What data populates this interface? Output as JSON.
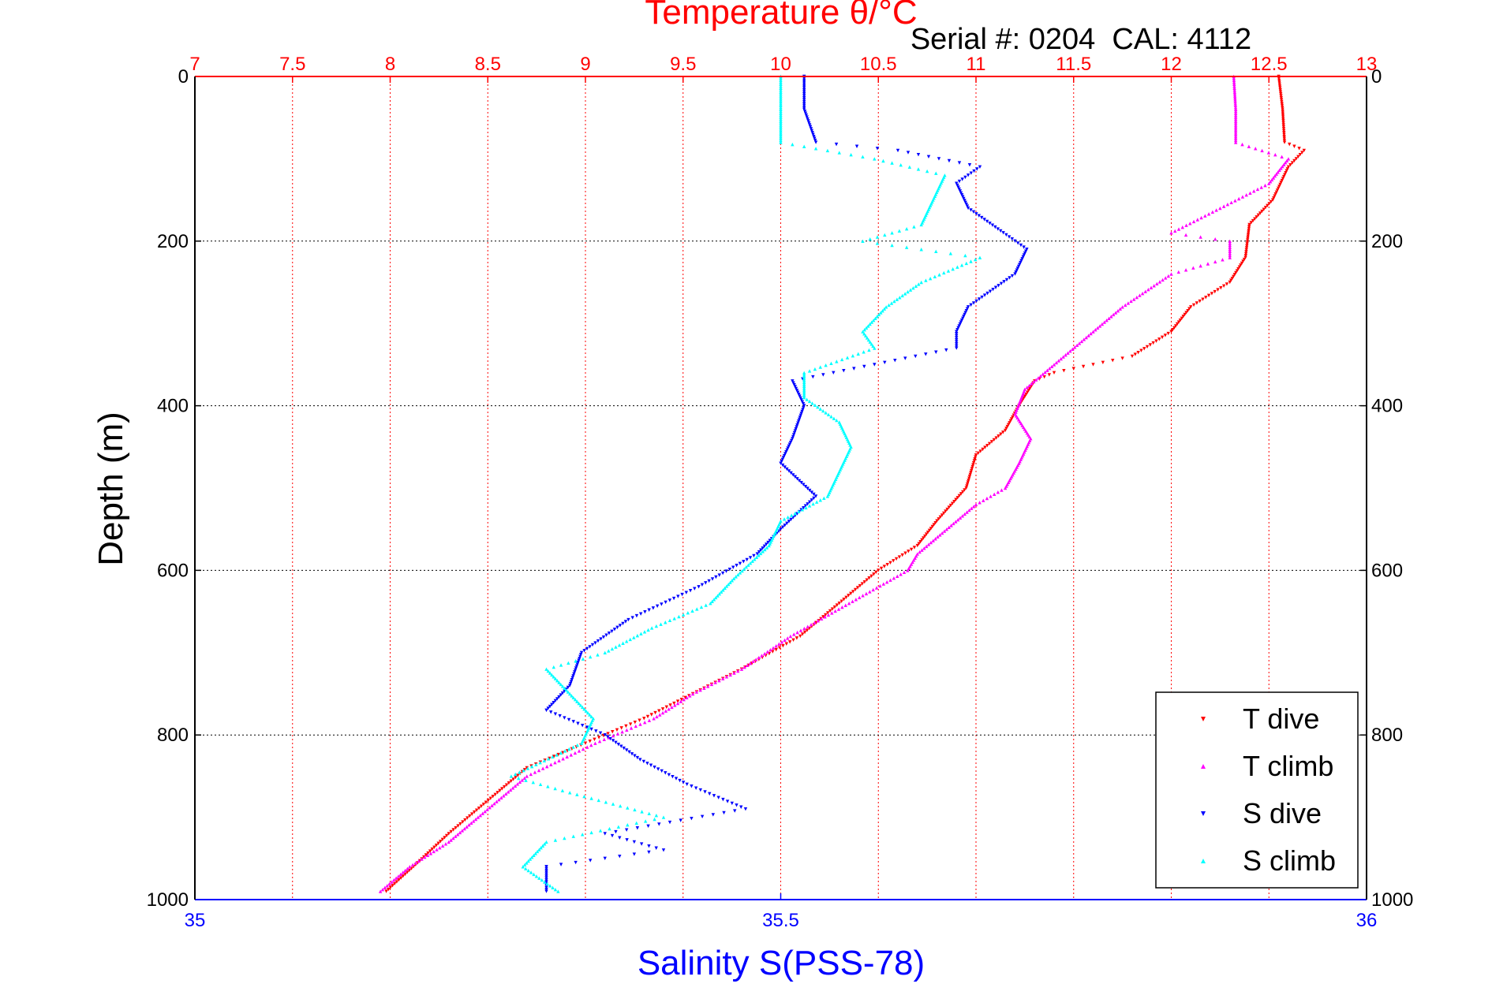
{
  "chart_data": {
    "type": "scatter",
    "title": "Temperature θ/°C",
    "subtitle": "Serial #: 0204  CAL: 4112",
    "xlabel": "Salinity S(PSS-78)",
    "ylabel": "Depth (m)",
    "x_top": {
      "label": "Temperature θ/°C",
      "range": [
        7,
        13
      ],
      "ticks": [
        "7",
        "7.5",
        "8",
        "8.5",
        "9",
        "9.5",
        "10",
        "10.5",
        "11",
        "11.5",
        "12",
        "12.5",
        "13"
      ],
      "color": "#ff0000"
    },
    "x_bottom": {
      "label": "Salinity S(PSS-78)",
      "range": [
        35,
        36
      ],
      "ticks": [
        "35",
        "35.5",
        "36"
      ],
      "color": "#0000ff"
    },
    "y": {
      "range": [
        0,
        1000
      ],
      "reversed": true,
      "ticks": [
        "0",
        "200",
        "400",
        "600",
        "800",
        "1000"
      ]
    },
    "grid": true,
    "legend_position": "bottom-right",
    "series": [
      {
        "name": "T dive",
        "axis": "temperature",
        "color": "#ff0000",
        "marker": "triangle-down",
        "points": [
          [
            12.55,
            0
          ],
          [
            12.57,
            40
          ],
          [
            12.58,
            80
          ],
          [
            12.68,
            90
          ],
          [
            12.6,
            110
          ],
          [
            12.52,
            150
          ],
          [
            12.4,
            180
          ],
          [
            12.38,
            220
          ],
          [
            12.3,
            250
          ],
          [
            12.1,
            280
          ],
          [
            12.0,
            310
          ],
          [
            11.8,
            340
          ],
          [
            11.4,
            360
          ],
          [
            11.3,
            370
          ],
          [
            11.22,
            400
          ],
          [
            11.15,
            430
          ],
          [
            11.0,
            460
          ],
          [
            10.95,
            500
          ],
          [
            10.8,
            540
          ],
          [
            10.7,
            570
          ],
          [
            10.5,
            600
          ],
          [
            10.3,
            640
          ],
          [
            10.1,
            680
          ],
          [
            9.8,
            720
          ],
          [
            9.55,
            750
          ],
          [
            9.3,
            780
          ],
          [
            9.0,
            810
          ],
          [
            8.7,
            840
          ],
          [
            8.55,
            870
          ],
          [
            8.3,
            920
          ],
          [
            8.12,
            960
          ],
          [
            7.98,
            990
          ]
        ]
      },
      {
        "name": "T climb",
        "axis": "temperature",
        "color": "#ff00ff",
        "marker": "triangle-up",
        "points": [
          [
            12.32,
            0
          ],
          [
            12.33,
            40
          ],
          [
            12.33,
            80
          ],
          [
            12.6,
            100
          ],
          [
            12.5,
            130
          ],
          [
            12.25,
            160
          ],
          [
            12.0,
            190
          ],
          [
            12.3,
            200
          ],
          [
            12.3,
            220
          ],
          [
            12.0,
            240
          ],
          [
            11.75,
            280
          ],
          [
            11.6,
            310
          ],
          [
            11.4,
            350
          ],
          [
            11.25,
            380
          ],
          [
            11.2,
            410
          ],
          [
            11.28,
            440
          ],
          [
            11.22,
            470
          ],
          [
            11.15,
            500
          ],
          [
            11.0,
            520
          ],
          [
            10.85,
            550
          ],
          [
            10.7,
            580
          ],
          [
            10.65,
            600
          ],
          [
            10.35,
            640
          ],
          [
            10.05,
            680
          ],
          [
            9.8,
            720
          ],
          [
            9.55,
            750
          ],
          [
            9.35,
            780
          ],
          [
            9.05,
            810
          ],
          [
            8.7,
            850
          ],
          [
            8.45,
            900
          ],
          [
            8.3,
            930
          ],
          [
            8.1,
            960
          ],
          [
            7.95,
            990
          ]
        ]
      },
      {
        "name": "S dive",
        "axis": "salinity",
        "color": "#0000ff",
        "marker": "triangle-down",
        "points": [
          [
            35.52,
            0
          ],
          [
            35.52,
            40
          ],
          [
            35.53,
            80
          ],
          [
            35.6,
            90
          ],
          [
            35.67,
            110
          ],
          [
            35.65,
            130
          ],
          [
            35.66,
            160
          ],
          [
            35.69,
            190
          ],
          [
            35.71,
            210
          ],
          [
            35.7,
            240
          ],
          [
            35.66,
            280
          ],
          [
            35.65,
            310
          ],
          [
            35.65,
            330
          ],
          [
            35.58,
            350
          ],
          [
            35.51,
            370
          ],
          [
            35.52,
            400
          ],
          [
            35.51,
            440
          ],
          [
            35.5,
            470
          ],
          [
            35.53,
            510
          ],
          [
            35.5,
            550
          ],
          [
            35.48,
            580
          ],
          [
            35.43,
            620
          ],
          [
            35.37,
            660
          ],
          [
            35.33,
            700
          ],
          [
            35.32,
            740
          ],
          [
            35.3,
            770
          ],
          [
            35.35,
            800
          ],
          [
            35.38,
            830
          ],
          [
            35.42,
            860
          ],
          [
            35.47,
            890
          ],
          [
            35.35,
            920
          ],
          [
            35.4,
            940
          ],
          [
            35.3,
            960
          ],
          [
            35.3,
            990
          ]
        ]
      },
      {
        "name": "S climb",
        "axis": "salinity",
        "color": "#00ffff",
        "marker": "triangle-up",
        "points": [
          [
            35.5,
            0
          ],
          [
            35.5,
            40
          ],
          [
            35.5,
            80
          ],
          [
            35.58,
            100
          ],
          [
            35.64,
            120
          ],
          [
            35.63,
            150
          ],
          [
            35.62,
            180
          ],
          [
            35.57,
            200
          ],
          [
            35.67,
            220
          ],
          [
            35.62,
            250
          ],
          [
            35.59,
            280
          ],
          [
            35.57,
            310
          ],
          [
            35.58,
            330
          ],
          [
            35.52,
            360
          ],
          [
            35.52,
            390
          ],
          [
            35.55,
            420
          ],
          [
            35.56,
            450
          ],
          [
            35.55,
            480
          ],
          [
            35.54,
            510
          ],
          [
            35.5,
            540
          ],
          [
            35.49,
            570
          ],
          [
            35.46,
            610
          ],
          [
            35.44,
            640
          ],
          [
            35.39,
            670
          ],
          [
            35.35,
            700
          ],
          [
            35.3,
            720
          ],
          [
            35.32,
            750
          ],
          [
            35.34,
            780
          ],
          [
            35.33,
            810
          ],
          [
            35.27,
            850
          ],
          [
            35.32,
            870
          ],
          [
            35.4,
            900
          ],
          [
            35.3,
            930
          ],
          [
            35.28,
            960
          ],
          [
            35.31,
            990
          ]
        ]
      }
    ]
  }
}
